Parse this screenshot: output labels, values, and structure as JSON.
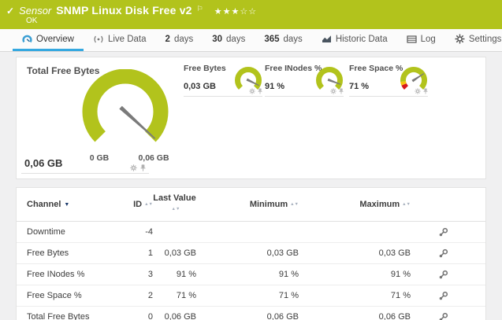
{
  "colors": {
    "brand_green": "#b2c31c",
    "accent_blue": "#35a8e0",
    "header_text_navy": "#1b3a6b",
    "gauge_green": "#b2c31c",
    "gauge_red": "#d7191c",
    "gauge_yellow": "#f5c40f",
    "needle": "#7a7a7a"
  },
  "header": {
    "status_icon": "✓",
    "kind": "Sensor",
    "name": "SNMP Linux Disk Free v2",
    "flag_icon": "⚐",
    "stars": "★★★☆☆",
    "status": "OK"
  },
  "tabs": [
    {
      "label": "Overview",
      "active": true
    },
    {
      "label": "Live Data"
    },
    {
      "prefix": "2",
      "label": "days"
    },
    {
      "prefix": "30",
      "label": "days"
    },
    {
      "prefix": "365",
      "label": "days"
    },
    {
      "label": "Historic Data"
    },
    {
      "label": "Log"
    },
    {
      "label": "Settings"
    }
  ],
  "gauges": {
    "main": {
      "title": "Total Free Bytes",
      "value": "0,06 GB",
      "scale_min": "0 GB",
      "scale_max": "0,06 GB",
      "percent": 99,
      "zones": [
        {
          "from": 0,
          "to": 100,
          "color": "#b2c31c"
        }
      ]
    },
    "small": [
      {
        "label": "Free Bytes",
        "value": "0,03 GB",
        "percent": 93,
        "zones": [
          {
            "from": 0,
            "to": 100,
            "color": "#b2c31c"
          }
        ]
      },
      {
        "label": "Free INodes %",
        "value": "91 %",
        "percent": 91,
        "zones": [
          {
            "from": 0,
            "to": 100,
            "color": "#b2c31c"
          }
        ]
      },
      {
        "label": "Free Space %",
        "value": "71 %",
        "percent": 71,
        "zones": [
          {
            "from": 0,
            "to": 8,
            "color": "#d7191c"
          },
          {
            "from": 8,
            "to": 14,
            "color": "#f5c40f"
          },
          {
            "from": 14,
            "to": 100,
            "color": "#b2c31c"
          }
        ]
      }
    ]
  },
  "table": {
    "headers": {
      "channel": "Channel",
      "id": "ID",
      "last_value": "Last Value",
      "minimum": "Minimum",
      "maximum": "Maximum"
    },
    "rows": [
      {
        "channel": "Downtime",
        "id": "-4",
        "last": "",
        "min": "",
        "max": ""
      },
      {
        "channel": "Free Bytes",
        "id": "1",
        "last": "0,03 GB",
        "min": "0,03 GB",
        "max": "0,03 GB"
      },
      {
        "channel": "Free INodes %",
        "id": "3",
        "last": "91 %",
        "min": "91 %",
        "max": "91 %"
      },
      {
        "channel": "Free Space %",
        "id": "2",
        "last": "71 %",
        "min": "71 %",
        "max": "71 %"
      },
      {
        "channel": "Total Free Bytes",
        "id": "0",
        "last": "0,06 GB",
        "min": "0,06 GB",
        "max": "0,06 GB"
      }
    ]
  }
}
